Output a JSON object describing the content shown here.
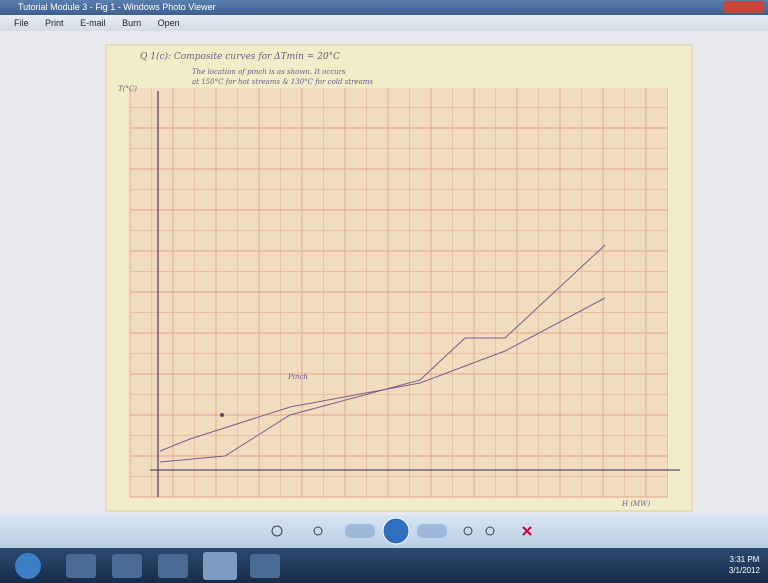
{
  "window": {
    "title": "Tutorial Module 3 - Fig 1 - Windows Photo Viewer",
    "menu": [
      "File",
      "Print",
      "E-mail",
      "Burn",
      "Open"
    ]
  },
  "image": {
    "heading": "Q 1(c): Composite curves for ΔTmin = 20°C",
    "note_lines": [
      "The location of pinch is as shown. It occurs",
      "at 150°C for hot streams & 130°C for cold streams"
    ],
    "y_axis_label": "T(°C)",
    "x_axis_label": "H (MW)",
    "annotation": "Pinch"
  },
  "taskbar": {
    "time": "3:31 PM",
    "date": "3/1/2012"
  }
}
